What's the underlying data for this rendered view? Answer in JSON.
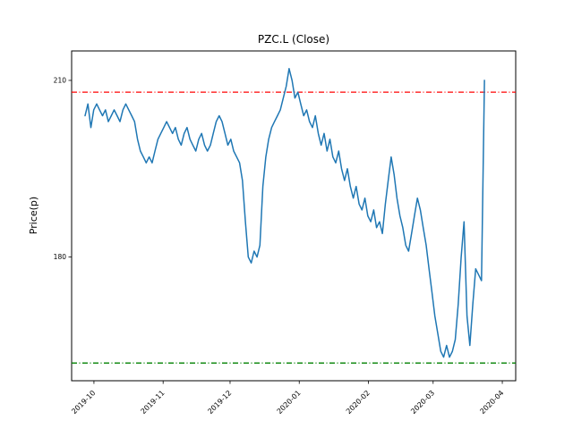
{
  "chart_data": {
    "type": "line",
    "title": "PZC.L (Close)",
    "xlabel": "",
    "ylabel": "Price(p)",
    "grid": false,
    "legend_position": "none",
    "xlim_days": [
      -6,
      193
    ],
    "ylim": [
      159,
      215
    ],
    "y_ticks": [
      210,
      180
    ],
    "x_tick_labels": [
      "2019-10",
      "2019-11",
      "2019-12",
      "2020-01",
      "2020-02",
      "2020-03",
      "2020-04"
    ],
    "x_tick_days": [
      4,
      35,
      65,
      96,
      127,
      156,
      187
    ],
    "series": [
      {
        "name": "Close",
        "color": "#1f77b4",
        "x_start_day": 0,
        "x_end_day": 179,
        "values": [
          204,
          206,
          202,
          205,
          206,
          205,
          204,
          205,
          203,
          204,
          205,
          204,
          203,
          205,
          206,
          205,
          204,
          203,
          200,
          198,
          197,
          196,
          197,
          196,
          198,
          200,
          201,
          202,
          203,
          202,
          201,
          202,
          200,
          199,
          201,
          202,
          200,
          199,
          198,
          200,
          201,
          199,
          198,
          199,
          201,
          203,
          204,
          203,
          201,
          199,
          200,
          198,
          197,
          196,
          193,
          186,
          180,
          179,
          181,
          180,
          182,
          192,
          197,
          200,
          202,
          203,
          204,
          205,
          207,
          209,
          212,
          210,
          207,
          208,
          206,
          204,
          205,
          203,
          202,
          204,
          201,
          199,
          201,
          198,
          200,
          197,
          196,
          198,
          195,
          193,
          195,
          192,
          190,
          192,
          189,
          188,
          190,
          187,
          186,
          188,
          185,
          186,
          184,
          189,
          193,
          197,
          194,
          190,
          187,
          185,
          182,
          181,
          184,
          187,
          190,
          188,
          185,
          182,
          178,
          174,
          170,
          167,
          164,
          163,
          165,
          163,
          164,
          166,
          172,
          180,
          186,
          170,
          165,
          172,
          178,
          177,
          176,
          210
        ]
      }
    ],
    "hlines": [
      {
        "name": "upper-threshold",
        "value": 208,
        "color": "#ff0000",
        "style": "dashdot"
      },
      {
        "name": "lower-threshold",
        "value": 162,
        "color": "#008000",
        "style": "dashdot"
      }
    ]
  }
}
